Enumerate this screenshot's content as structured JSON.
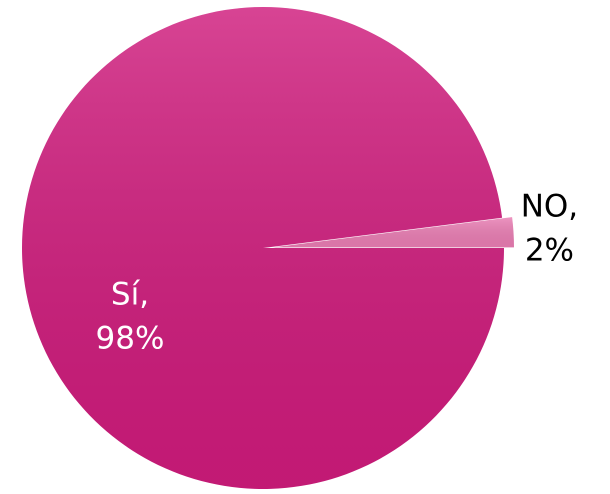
{
  "chart_data": {
    "type": "pie",
    "categories": [
      "Sí,",
      "NO,"
    ],
    "values": [
      98,
      2
    ],
    "value_labels": [
      "98%",
      "2%"
    ],
    "colors": [
      "#cf1b7c",
      "#e97db3"
    ],
    "exploded": [
      false,
      true
    ]
  }
}
